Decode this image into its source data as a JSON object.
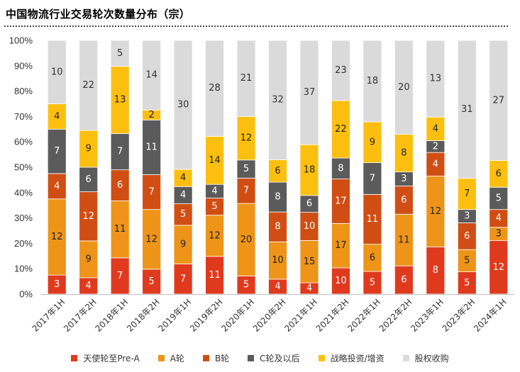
{
  "title": "中国物流行业交易轮次数量分布（宗）",
  "chart_data": {
    "type": "bar",
    "stacked": true,
    "percent": true,
    "categories": [
      "2017年1H",
      "2017年2H",
      "2018年1H",
      "2018年2H",
      "2019年1H",
      "2019年2H",
      "2020年1H",
      "2020年2H",
      "2021年1H",
      "2021年2H",
      "2022年1H",
      "2022年2H",
      "2023年1H",
      "2023年2H",
      "2024年1H"
    ],
    "series": [
      {
        "name": "天使轮至Pre-A",
        "color": "#E03A1E",
        "label_color": "#ffffff",
        "values": [
          3,
          4,
          7,
          5,
          7,
          11,
          5,
          4,
          4,
          10,
          5,
          6,
          8,
          5,
          12
        ]
      },
      {
        "name": "A轮",
        "color": "#EE9419",
        "label_color": "#222222",
        "values": [
          12,
          9,
          11,
          12,
          9,
          12,
          20,
          10,
          15,
          17,
          6,
          11,
          12,
          5,
          3
        ]
      },
      {
        "name": "B轮",
        "color": "#D04E14",
        "label_color": "#ffffff",
        "values": [
          4,
          12,
          6,
          7,
          5,
          5,
          7,
          8,
          10,
          17,
          11,
          6,
          4,
          6,
          4
        ]
      },
      {
        "name": "C轮及以后",
        "color": "#5B5B5B",
        "label_color": "#ffffff",
        "values": [
          7,
          6,
          7,
          11,
          4,
          4,
          5,
          8,
          6,
          8,
          7,
          3,
          2,
          3,
          5
        ]
      },
      {
        "name": "战略投资/增资",
        "color": "#FDBF0F",
        "label_color": "#222222",
        "values": [
          4,
          9,
          13,
          2,
          4,
          14,
          12,
          6,
          18,
          22,
          9,
          8,
          4,
          7,
          6
        ]
      },
      {
        "name": "股权收购",
        "color": "#DADADA",
        "label_color": "#333333",
        "values": [
          10,
          22,
          5,
          14,
          30,
          28,
          21,
          32,
          37,
          23,
          18,
          20,
          13,
          31,
          27
        ]
      }
    ],
    "yticks": [
      "0%",
      "10%",
      "20%",
      "30%",
      "40%",
      "50%",
      "60%",
      "70%",
      "80%",
      "90%",
      "100%"
    ],
    "ylim": [
      0,
      100
    ],
    "legend_position": "bottom"
  }
}
